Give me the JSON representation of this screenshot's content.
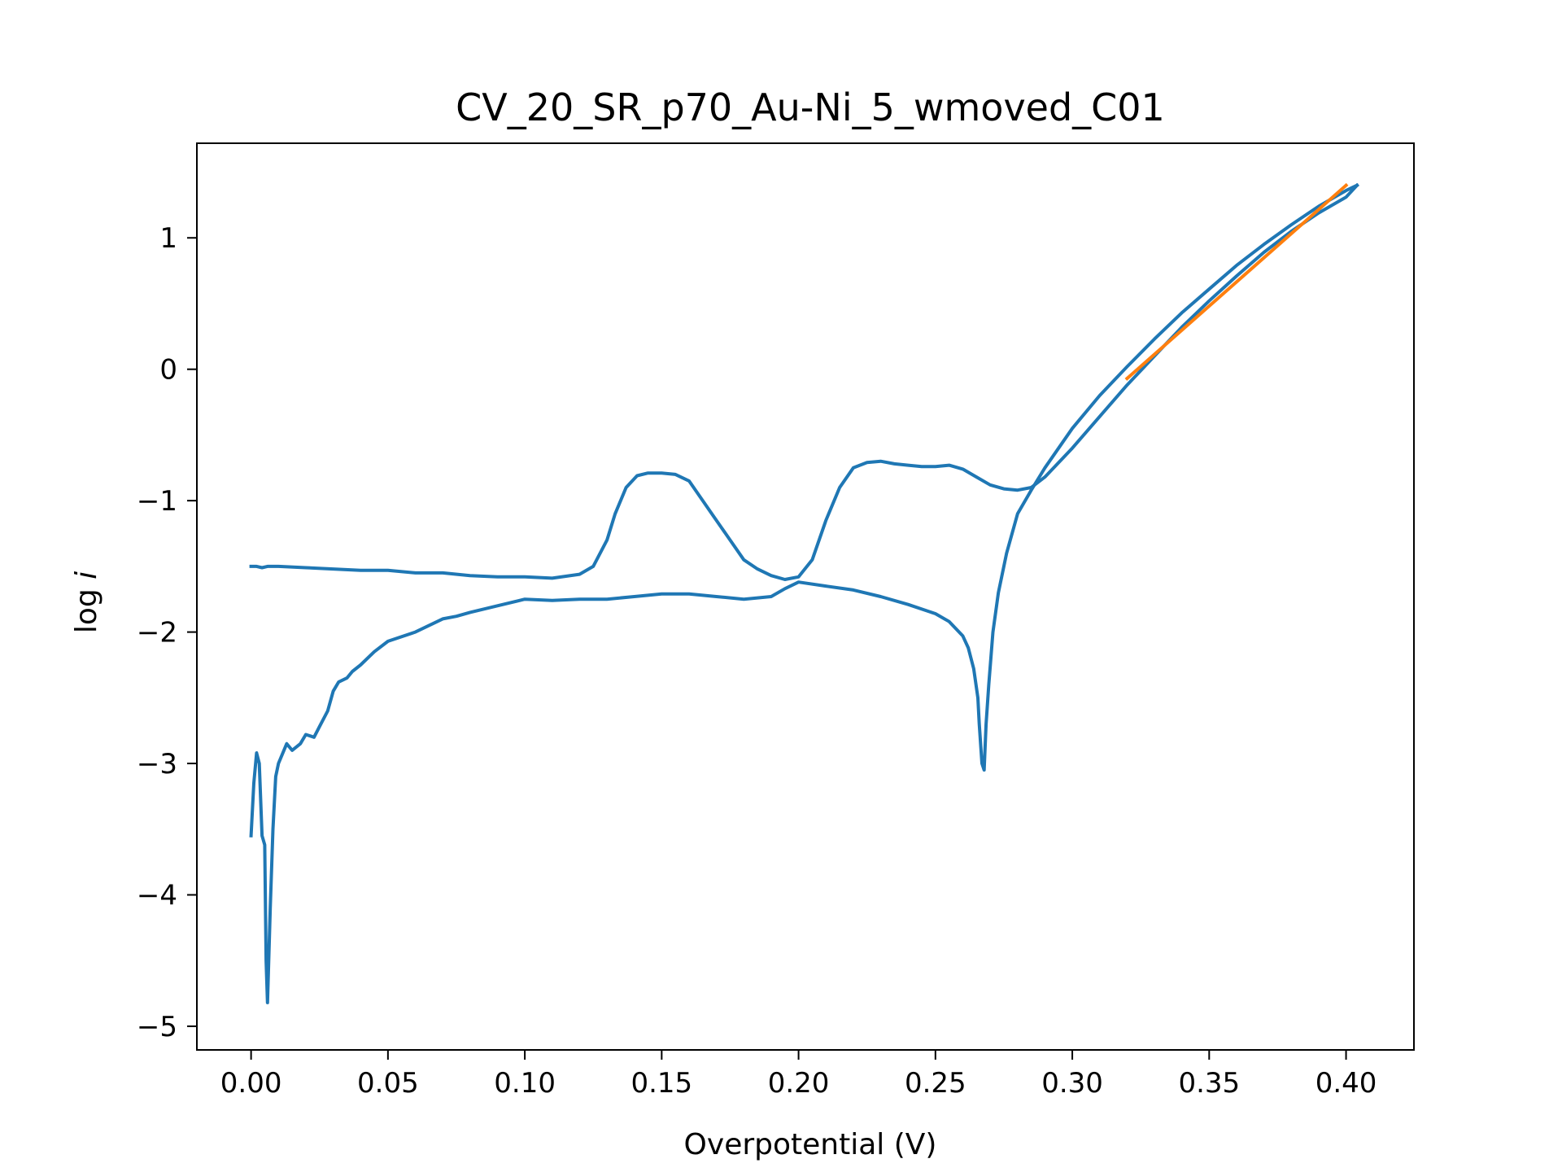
{
  "chart_data": {
    "type": "line",
    "title": "CV_20_SR_p70_Au-Ni_5_wmoved_C01",
    "xlabel": "Overpotential (V)",
    "ylabel_prefix": "log ",
    "ylabel_var": "i",
    "xlim": [
      -0.0198,
      0.4248
    ],
    "ylim": [
      -5.18,
      1.72
    ],
    "grid": false,
    "legend": "none",
    "x_ticks": [
      {
        "value": 0.0,
        "label": "0.00"
      },
      {
        "value": 0.05,
        "label": "0.05"
      },
      {
        "value": 0.1,
        "label": "0.10"
      },
      {
        "value": 0.15,
        "label": "0.15"
      },
      {
        "value": 0.2,
        "label": "0.20"
      },
      {
        "value": 0.25,
        "label": "0.25"
      },
      {
        "value": 0.3,
        "label": "0.30"
      },
      {
        "value": 0.35,
        "label": "0.35"
      },
      {
        "value": 0.4,
        "label": "0.40"
      }
    ],
    "y_ticks": [
      {
        "value": 1,
        "label": "1"
      },
      {
        "value": 0,
        "label": "0"
      },
      {
        "value": -1,
        "label": "−1"
      },
      {
        "value": -2,
        "label": "−2"
      },
      {
        "value": -3,
        "label": "−3"
      },
      {
        "value": -4,
        "label": "−4"
      },
      {
        "value": -5,
        "label": "−5"
      }
    ],
    "series": [
      {
        "color": "#1f77b4",
        "x": [
          0.0,
          0.002,
          0.004,
          0.006,
          0.01,
          0.02,
          0.03,
          0.04,
          0.05,
          0.06,
          0.07,
          0.08,
          0.09,
          0.1,
          0.11,
          0.12,
          0.125,
          0.13,
          0.133,
          0.137,
          0.141,
          0.145,
          0.15,
          0.155,
          0.16,
          0.165,
          0.17,
          0.175,
          0.18,
          0.185,
          0.19,
          0.195,
          0.2,
          0.205,
          0.21,
          0.215,
          0.22,
          0.225,
          0.23,
          0.235,
          0.24,
          0.245,
          0.25,
          0.255,
          0.26,
          0.265,
          0.27,
          0.275,
          0.28,
          0.285,
          0.29,
          0.3,
          0.31,
          0.32,
          0.33,
          0.34,
          0.35,
          0.36,
          0.37,
          0.38,
          0.39,
          0.4,
          0.404
        ],
        "y": [
          -1.5,
          -1.5,
          -1.51,
          -1.5,
          -1.5,
          -1.51,
          -1.52,
          -1.53,
          -1.53,
          -1.55,
          -1.55,
          -1.57,
          -1.58,
          -1.58,
          -1.59,
          -1.56,
          -1.5,
          -1.3,
          -1.1,
          -0.9,
          -0.81,
          -0.79,
          -0.79,
          -0.8,
          -0.85,
          -1.0,
          -1.15,
          -1.3,
          -1.45,
          -1.52,
          -1.57,
          -1.6,
          -1.58,
          -1.45,
          -1.15,
          -0.9,
          -0.75,
          -0.71,
          -0.7,
          -0.72,
          -0.73,
          -0.74,
          -0.74,
          -0.73,
          -0.76,
          -0.82,
          -0.88,
          -0.91,
          -0.92,
          -0.9,
          -0.82,
          -0.6,
          -0.36,
          -0.12,
          0.1,
          0.32,
          0.52,
          0.71,
          0.89,
          1.05,
          1.19,
          1.31,
          1.4
        ]
      },
      {
        "color": "#1f77b4",
        "x": [
          0.404,
          0.4,
          0.39,
          0.38,
          0.37,
          0.36,
          0.35,
          0.34,
          0.33,
          0.32,
          0.31,
          0.3,
          0.29,
          0.285,
          0.28,
          0.276,
          0.273,
          0.271,
          0.2695,
          0.2685,
          0.2678,
          0.267,
          0.266,
          0.2655,
          0.264,
          0.262,
          0.26,
          0.255,
          0.25,
          0.24,
          0.23,
          0.22,
          0.21,
          0.2,
          0.195,
          0.19,
          0.18,
          0.17,
          0.16,
          0.15,
          0.14,
          0.13,
          0.12,
          0.11,
          0.1,
          0.09,
          0.08,
          0.075,
          0.07,
          0.06,
          0.05,
          0.045,
          0.04,
          0.037,
          0.035,
          0.032,
          0.03,
          0.028,
          0.025,
          0.023,
          0.02,
          0.018,
          0.015,
          0.013,
          0.01,
          0.009,
          0.008,
          0.007,
          0.006,
          0.0055,
          0.005,
          0.004,
          0.003,
          0.002,
          0.001,
          0.0
        ],
        "y": [
          1.4,
          1.36,
          1.24,
          1.1,
          0.95,
          0.79,
          0.61,
          0.43,
          0.23,
          0.02,
          -0.2,
          -0.45,
          -0.75,
          -0.92,
          -1.1,
          -1.4,
          -1.7,
          -2.0,
          -2.4,
          -2.7,
          -3.05,
          -3.0,
          -2.7,
          -2.5,
          -2.28,
          -2.12,
          -2.03,
          -1.92,
          -1.86,
          -1.79,
          -1.73,
          -1.68,
          -1.65,
          -1.62,
          -1.67,
          -1.73,
          -1.75,
          -1.73,
          -1.71,
          -1.71,
          -1.73,
          -1.75,
          -1.75,
          -1.76,
          -1.75,
          -1.8,
          -1.85,
          -1.88,
          -1.9,
          -2.0,
          -2.07,
          -2.15,
          -2.25,
          -2.3,
          -2.35,
          -2.38,
          -2.45,
          -2.6,
          -2.72,
          -2.8,
          -2.78,
          -2.85,
          -2.9,
          -2.85,
          -3.0,
          -3.1,
          -3.5,
          -4.1,
          -4.82,
          -4.5,
          -3.62,
          -3.55,
          -3.0,
          -2.92,
          -3.15,
          -3.55
        ]
      },
      {
        "color": "#ff7f0e",
        "x": [
          0.32,
          0.4
        ],
        "y": [
          -0.07,
          1.4
        ]
      }
    ]
  }
}
